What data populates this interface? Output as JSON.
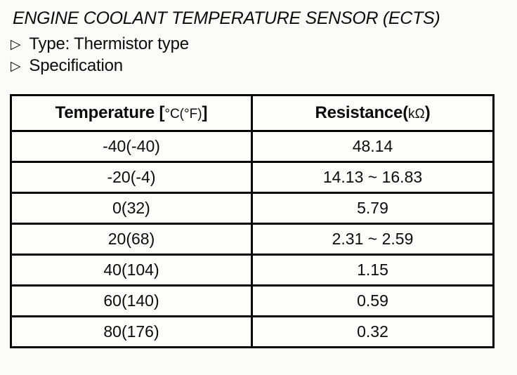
{
  "doc": {
    "title": "ENGINE COOLANT TEMPERATURE SENSOR (ECTS)",
    "bullets": [
      {
        "marker": "▷",
        "text": "Type: Thermistor type"
      },
      {
        "marker": "▷",
        "text": "Specification"
      }
    ]
  },
  "table": {
    "headers": [
      {
        "pre": "Temperature [",
        "unit": "°C(°F)",
        "post": "]"
      },
      {
        "pre": "Resistance(",
        "unit": "kΩ",
        "post": ")"
      }
    ],
    "rows": [
      {
        "temp": "-40(-40)",
        "res": "48.14"
      },
      {
        "temp": "-20(-4)",
        "res": "14.13 ~ 16.83"
      },
      {
        "temp": "0(32)",
        "res": "5.79"
      },
      {
        "temp": "20(68)",
        "res": "2.31 ~ 2.59"
      },
      {
        "temp": "40(104)",
        "res": "1.15"
      },
      {
        "temp": "60(140)",
        "res": "0.59"
      },
      {
        "temp": "80(176)",
        "res": "0.32"
      }
    ]
  },
  "colors": {
    "ink": "#0c0c0c",
    "paper": "#fbfbf9",
    "border": "#060606"
  }
}
